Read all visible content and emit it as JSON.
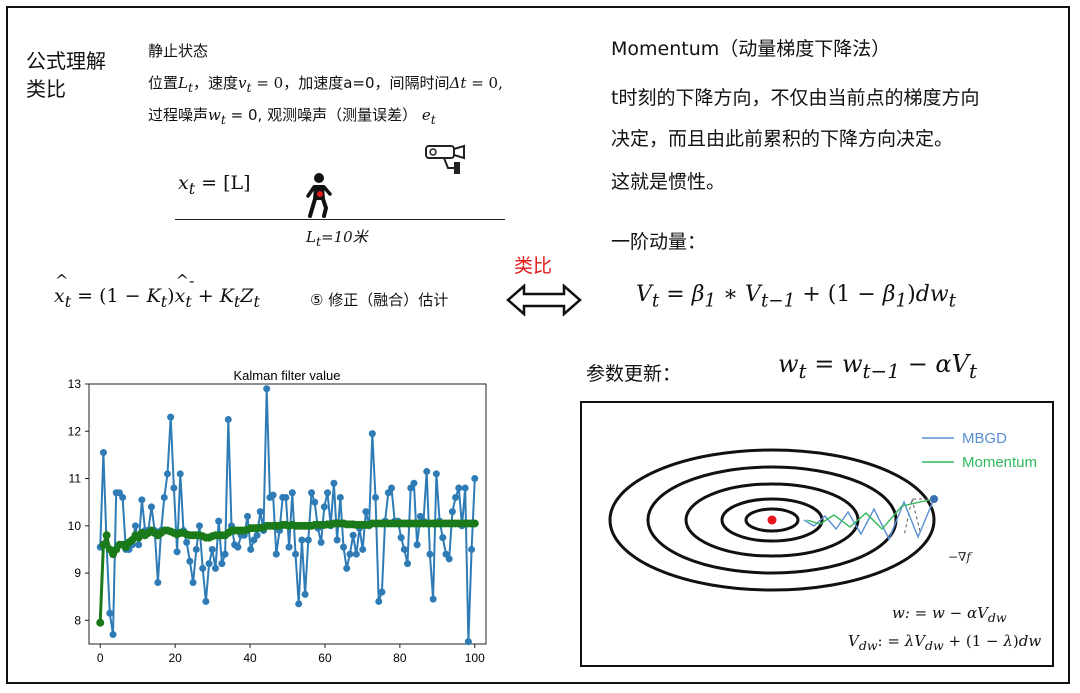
{
  "left": {
    "title_line1": "公式理解",
    "title_line2": "类比",
    "state_title": "静止状态",
    "line_a_prefix": "位置",
    "line_a_rest": "，速度",
    "line_a_rest2": "，加速度a=0，间隔时间",
    "line_b_prefix": "过程噪声",
    "line_b_rest": " = 0, 观测噪声（测量误差）",
    "eq_x": "x",
    "eq_x_rhs": "= [L]",
    "ground_label": "L",
    "ground_label_rest": "=10米",
    "kalman_step": "⑤ 修正（融合）估计"
  },
  "middle": {
    "analogy": "类比",
    "arrow": "⟺"
  },
  "right": {
    "title": "Momentum（动量梯度下降法）",
    "para1": "t时刻的下降方向，不仅由当前点的梯度方向",
    "para2": "决定，而且由此前累积的下降方向决定。",
    "para3": "这就是惯性。",
    "first_order": "一阶动量：",
    "update_label": "参数更新："
  },
  "contour": {
    "legend_mbgd": "MBGD",
    "legend_momentum": "Momentum",
    "grad_label": "−∇f",
    "formula1": "w: = w − αV",
    "formula2": "V",
    "colors": {
      "mbgd": "#5b8fd4",
      "momentum": "#2fb95a",
      "minimum": "#e8151b"
    }
  },
  "chart_data": {
    "type": "line",
    "title": "Kalman filter value",
    "xlim": [
      0,
      100
    ],
    "ylim": [
      7.5,
      13
    ],
    "xticks": [
      0,
      20,
      40,
      60,
      80,
      100
    ],
    "yticks": [
      8,
      9,
      10,
      11,
      12,
      13
    ],
    "series": [
      {
        "color": "#2e7bb6",
        "values": [
          9.55,
          11.55,
          9.6,
          8.15,
          7.7,
          10.7,
          10.7,
          10.6,
          9.5,
          9.5,
          9.6,
          10.0,
          9.6,
          10.55,
          9.9,
          9.9,
          10.4,
          9.9,
          8.8,
          9.9,
          10.6,
          11.1,
          12.3,
          10.8,
          9.45,
          11.1,
          9.9,
          9.65,
          9.25,
          8.8,
          9.5,
          10.0,
          9.1,
          8.4,
          9.2,
          9.5,
          9.1,
          10.1,
          9.2,
          9.4,
          12.25,
          10.0,
          9.6,
          9.55,
          9.8,
          9.8,
          10.2,
          9.5,
          9.7,
          9.8,
          10.3,
          9.9,
          12.9,
          10.6,
          10.65,
          9.4,
          9.9,
          10.6,
          10.6,
          9.55,
          10.7,
          9.4,
          8.35,
          9.7,
          8.55,
          9.7,
          10.7,
          10.5,
          9.95,
          9.65,
          10.4,
          10.7,
          10.0,
          10.9,
          9.7,
          10.6,
          9.55,
          9.1,
          9.4,
          9.8,
          9.4,
          9.95,
          9.5,
          10.3,
          10.0,
          11.95,
          10.6,
          8.4,
          8.6,
          10.1,
          10.7,
          10.8,
          10.1,
          10.1,
          9.75,
          9.5,
          9.2,
          10.8,
          10.9,
          9.6,
          10.2,
          10.1,
          11.15,
          9.4,
          8.45,
          11.1,
          10.1,
          9.75,
          9.4,
          9.3,
          10.3,
          10.6,
          10.8,
          10.0,
          10.8,
          7.55,
          9.5,
          11.0
        ]
      },
      {
        "color": "#1a7a1a",
        "values": [
          7.95,
          9.6,
          9.8,
          9.5,
          9.4,
          9.5,
          9.6,
          9.6,
          9.55,
          9.65,
          9.7,
          9.8,
          9.75,
          9.85,
          9.8,
          9.85,
          9.9,
          9.85,
          9.8,
          9.85,
          9.9,
          9.9,
          9.88,
          9.85,
          9.82,
          9.85,
          9.85,
          9.82,
          9.8,
          9.8,
          9.8,
          9.8,
          9.78,
          9.75,
          9.75,
          9.78,
          9.8,
          9.8,
          9.8,
          9.8,
          9.85,
          9.9,
          9.9,
          9.9,
          9.9,
          9.9,
          9.92,
          9.95,
          9.95,
          9.95,
          9.96,
          9.96,
          10.0,
          10.0,
          10.0,
          10.0,
          10.0,
          10.02,
          10.02,
          10.0,
          10.02,
          10.0,
          10.0,
          10.0,
          10.0,
          10.0,
          10.0,
          10.02,
          10.02,
          10.02,
          10.02,
          10.03,
          10.03,
          10.05,
          10.05,
          10.05,
          10.05,
          10.03,
          10.03,
          10.03,
          10.02,
          10.02,
          10.02,
          10.02,
          10.02,
          10.05,
          10.05,
          10.05,
          10.05,
          10.05,
          10.05,
          10.05,
          10.05,
          10.05,
          10.05,
          10.05,
          10.05,
          10.05,
          10.05,
          10.05,
          10.05,
          10.05,
          10.05,
          10.05,
          10.05,
          10.05,
          10.05,
          10.05,
          10.05,
          10.05,
          10.05,
          10.05,
          10.05,
          10.05,
          10.05,
          10.05,
          10.05,
          10.05
        ]
      }
    ]
  }
}
